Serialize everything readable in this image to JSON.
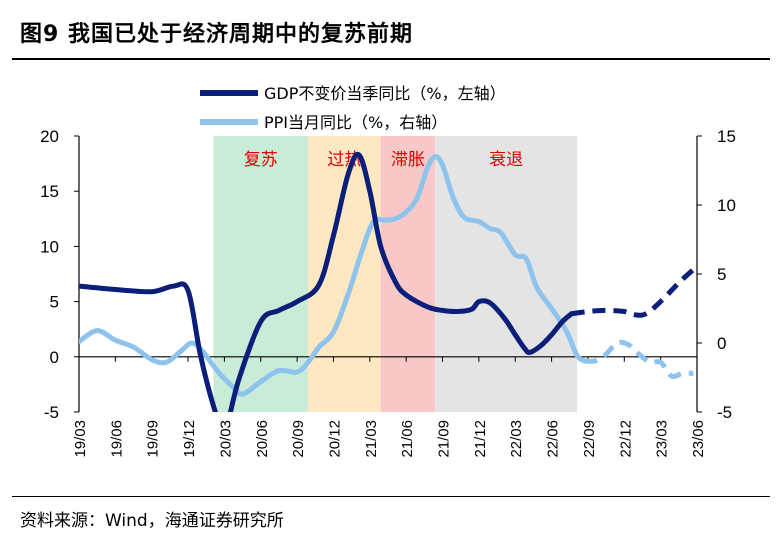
{
  "figure": {
    "title": "图9  我国已处于经济周期中的复苏前期",
    "source": "资料来源：Wind，海通证券研究所"
  },
  "colors": {
    "gdp": "#0b1f7a",
    "ppi": "#8ec3ee",
    "recovery": "#c8ecd7",
    "overheat": "#fde8c2",
    "stagflation": "#f8c8c8",
    "recession": "#e4e4e4",
    "phase_text": "#e00000"
  },
  "chart_data": {
    "type": "line",
    "x_labels": [
      "19/03",
      "19/06",
      "19/09",
      "19/12",
      "20/03",
      "20/06",
      "20/09",
      "20/12",
      "21/03",
      "21/06",
      "21/09",
      "21/12",
      "22/03",
      "22/06",
      "22/09",
      "22/12",
      "23/03",
      "23/06"
    ],
    "y_left": {
      "ticks": [
        "20",
        "15",
        "10",
        "5",
        "0",
        "-5"
      ],
      "range": [
        -5,
        20
      ]
    },
    "y_right": {
      "ticks": [
        "15",
        "10",
        "5",
        "0",
        "-5"
      ],
      "range": [
        -5,
        15
      ]
    },
    "phases": [
      {
        "name": "复苏",
        "from": 3.7,
        "to": 6.3,
        "color_key": "recovery"
      },
      {
        "name": "过热",
        "from": 6.3,
        "to": 8.3,
        "color_key": "overheat"
      },
      {
        "name": "滞胀",
        "from": 8.3,
        "to": 9.8,
        "color_key": "stagflation"
      },
      {
        "name": "衰退",
        "from": 9.8,
        "to": 13.7,
        "color_key": "recession"
      }
    ],
    "series": [
      {
        "name": "GDP不变价当季同比（%，左轴）",
        "axis": "left",
        "color_key": "gdp",
        "solid": [
          [
            0,
            6.4
          ],
          [
            1,
            6.1
          ],
          [
            2,
            5.9
          ],
          [
            2.6,
            6.4
          ],
          [
            3,
            6.0
          ],
          [
            3.35,
            0
          ],
          [
            3.75,
            -5
          ],
          [
            4,
            -6.8
          ],
          [
            4.4,
            -2
          ],
          [
            5,
            3.2
          ],
          [
            5.5,
            4.2
          ],
          [
            6,
            5.0
          ],
          [
            6.6,
            6.5
          ],
          [
            7,
            11
          ],
          [
            7.4,
            16.5
          ],
          [
            7.7,
            18.3
          ],
          [
            8,
            15
          ],
          [
            8.3,
            10
          ],
          [
            8.7,
            6.8
          ],
          [
            9,
            5.6
          ],
          [
            9.6,
            4.5
          ],
          [
            10,
            4.2
          ],
          [
            10.4,
            4.1
          ],
          [
            10.8,
            4.3
          ],
          [
            11,
            5.0
          ],
          [
            11.3,
            4.9
          ],
          [
            11.7,
            3.5
          ],
          [
            12,
            2.0
          ],
          [
            12.25,
            0.8
          ],
          [
            12.4,
            0.4
          ],
          [
            12.7,
            1.0
          ],
          [
            13,
            2.0
          ],
          [
            13.3,
            3.2
          ],
          [
            13.55,
            3.9
          ]
        ],
        "dashed": [
          [
            13.55,
            3.9
          ],
          [
            14,
            4.1
          ],
          [
            14.5,
            4.2
          ],
          [
            15,
            4.1
          ],
          [
            15.3,
            3.8
          ],
          [
            15.6,
            3.9
          ],
          [
            16,
            5.0
          ],
          [
            16.5,
            6.7
          ],
          [
            16.9,
            7.9
          ]
        ]
      },
      {
        "name": "PPI当月同比（%，右轴）",
        "axis": "right",
        "color_key": "ppi",
        "solid": [
          [
            0,
            0.1
          ],
          [
            0.5,
            0.9
          ],
          [
            1,
            0.2
          ],
          [
            1.5,
            -0.3
          ],
          [
            2,
            -1.2
          ],
          [
            2.4,
            -1.4
          ],
          [
            2.8,
            -0.6
          ],
          [
            3.1,
            0
          ],
          [
            3.4,
            -0.6
          ],
          [
            3.8,
            -2.0
          ],
          [
            4.2,
            -3.1
          ],
          [
            4.5,
            -3.7
          ],
          [
            5,
            -2.8
          ],
          [
            5.5,
            -2.0
          ],
          [
            6,
            -2.1
          ],
          [
            6.3,
            -1.4
          ],
          [
            6.6,
            -0.3
          ],
          [
            7,
            0.8
          ],
          [
            7.4,
            3.5
          ],
          [
            7.8,
            6.8
          ],
          [
            8.1,
            8.8
          ],
          [
            8.4,
            8.9
          ],
          [
            8.7,
            9.0
          ],
          [
            9,
            9.5
          ],
          [
            9.3,
            10.5
          ],
          [
            9.6,
            12.8
          ],
          [
            9.8,
            13.5
          ],
          [
            10,
            12.9
          ],
          [
            10.3,
            10.5
          ],
          [
            10.6,
            9.1
          ],
          [
            11,
            8.8
          ],
          [
            11.3,
            8.3
          ],
          [
            11.6,
            8.0
          ],
          [
            12,
            6.4
          ],
          [
            12.3,
            6.1
          ],
          [
            12.6,
            4.0
          ],
          [
            13,
            2.5
          ],
          [
            13.4,
            0.9
          ],
          [
            13.7,
            -0.9
          ],
          [
            13.9,
            -1.3
          ]
        ],
        "dashed": [
          [
            13.9,
            -1.3
          ],
          [
            14.2,
            -1.3
          ],
          [
            14.5,
            -0.8
          ],
          [
            14.8,
            0
          ],
          [
            15.1,
            -0.1
          ],
          [
            15.4,
            -0.8
          ],
          [
            15.7,
            -1.4
          ],
          [
            16,
            -1.4
          ],
          [
            16.3,
            -2.4
          ],
          [
            16.6,
            -2.2
          ],
          [
            16.9,
            -2.2
          ]
        ]
      }
    ]
  }
}
